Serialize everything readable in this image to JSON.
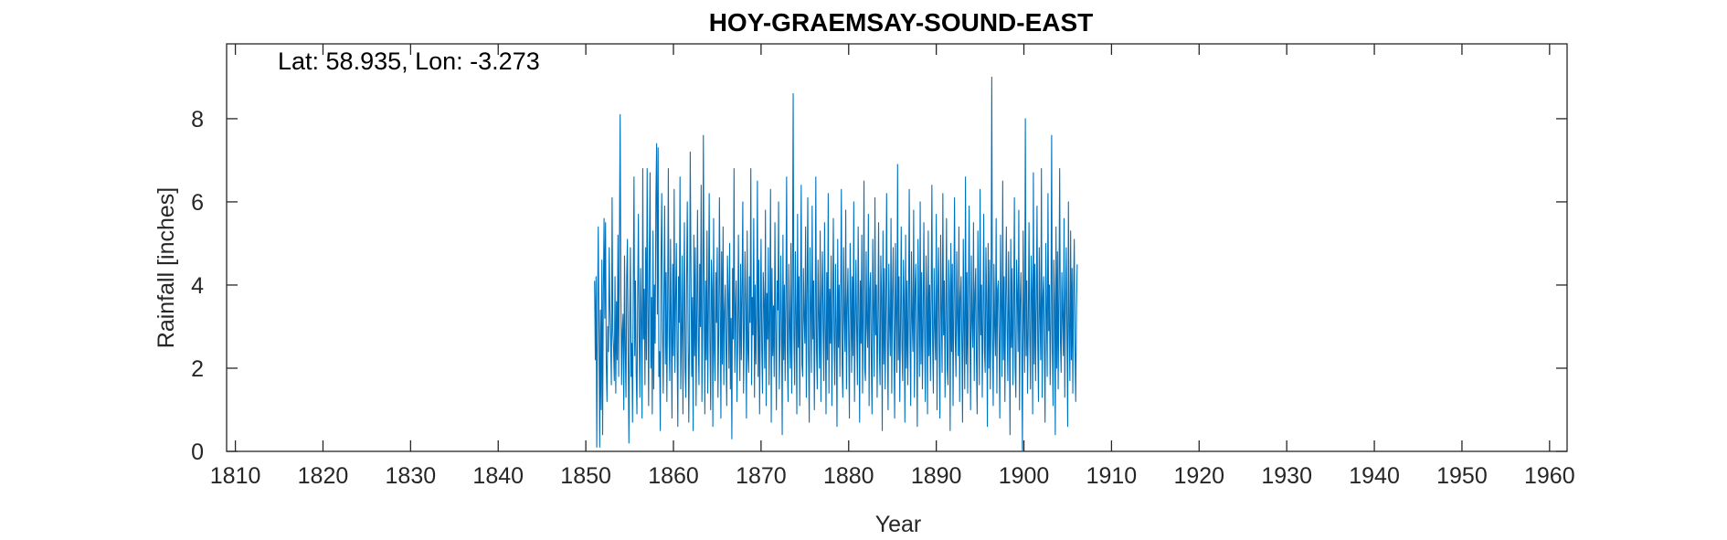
{
  "chart_data": {
    "type": "line",
    "title": "HOY-GRAEMSAY-SOUND-EAST",
    "xlabel": "Year",
    "ylabel": "Rainfall [inches]",
    "annotation": "Lat: 58.935, Lon: -3.273",
    "xlim": [
      1809,
      1962
    ],
    "ylim": [
      0,
      9.8
    ],
    "xticks": [
      1810,
      1820,
      1830,
      1840,
      1850,
      1860,
      1870,
      1880,
      1890,
      1900,
      1910,
      1920,
      1930,
      1940,
      1950,
      1960
    ],
    "yticks": [
      0,
      2,
      4,
      6,
      8
    ],
    "grid": false,
    "series": [
      {
        "color": "#0072BD",
        "x_start": 1851.0,
        "step": 0.0833333,
        "values": [
          4.1,
          2.2,
          4.2,
          0.1,
          3.1,
          5.4,
          2.9,
          0.1,
          3.4,
          1.0,
          4.6,
          0.4,
          3.8,
          5.6,
          3.2,
          5.5,
          2.1,
          1.2,
          3.0,
          2.4,
          4.9,
          3.4,
          2.7,
          1.6,
          6.1,
          2.9,
          2.5,
          1.7,
          4.2,
          1.4,
          3.6,
          2.2,
          5.2,
          1.8,
          4.8,
          8.1,
          3.8,
          1.6,
          2.9,
          3.3,
          1.0,
          4.7,
          2.5,
          1.3,
          4.2,
          5.1,
          2.4,
          0.2,
          3.0,
          4.9,
          1.8,
          2.6,
          0.7,
          3.9,
          6.6,
          2.3,
          4.1,
          1.9,
          0.9,
          3.7,
          5.7,
          2.8,
          1.3,
          4.4,
          3.1,
          0.8,
          6.8,
          2.7,
          3.9,
          1.6,
          4.9,
          2.2,
          6.8,
          3.5,
          1.1,
          4.8,
          6.7,
          2.0,
          3.7,
          0.9,
          5.3,
          1.5,
          4.0,
          2.6,
          6.1,
          7.4,
          3.3,
          7.3,
          1.8,
          2.4,
          0.5,
          4.6,
          6.2,
          2.9,
          1.4,
          3.8,
          5.9,
          2.1,
          4.3,
          1.2,
          3.5,
          6.8,
          2.7,
          1.7,
          5.1,
          3.0,
          0.8,
          4.5,
          2.3,
          6.3,
          1.9,
          3.6,
          5.0,
          2.5,
          0.6,
          4.2,
          3.1,
          6.6,
          1.5,
          2.8,
          4.7,
          0.9,
          3.4,
          5.5,
          2.0,
          1.3,
          4.0,
          6.0,
          3.2,
          0.7,
          2.6,
          7.2,
          4.4,
          1.8,
          3.7,
          0.5,
          5.2,
          2.3,
          4.9,
          1.1,
          3.3,
          5.8,
          2.7,
          1.6,
          4.5,
          3.0,
          6.4,
          1.2,
          2.9,
          7.6,
          3.8,
          0.9,
          4.1,
          2.2,
          5.3,
          1.4,
          3.5,
          6.2,
          2.6,
          1.0,
          4.6,
          3.9,
          0.6,
          5.6,
          2.4,
          1.7,
          4.3,
          3.1,
          4.9,
          1.3,
          2.8,
          6.1,
          3.6,
          0.8,
          4.8,
          2.1,
          5.4,
          1.6,
          3.3,
          4.0,
          2.5,
          1.1,
          4.7,
          3.8,
          2.0,
          5.0,
          1.5,
          3.2,
          0.3,
          4.4,
          2.7,
          6.8,
          1.9,
          3.4,
          4.1,
          1.2,
          2.6,
          5.2,
          3.0,
          1.7,
          4.5,
          2.2,
          3.9,
          6.0,
          1.4,
          2.9,
          4.8,
          3.5,
          0.8,
          5.3,
          2.4,
          1.9,
          4.2,
          3.1,
          6.8,
          1.6,
          3.7,
          2.8,
          5.6,
          1.3,
          4.0,
          2.1,
          3.3,
          6.5,
          1.8,
          4.6,
          0.9,
          3.0,
          5.1,
          2.5,
          1.4,
          4.3,
          3.6,
          2.0,
          5.8,
          1.1,
          3.8,
          2.7,
          4.9,
          1.6,
          3.2,
          6.3,
          0.7,
          4.4,
          2.3,
          3.5,
          1.8,
          5.5,
          2.9,
          1.0,
          4.1,
          3.4,
          6.0,
          1.5,
          2.6,
          4.7,
          3.1,
          0.4,
          5.2,
          2.2,
          4.0,
          1.7,
          3.6,
          6.6,
          2.4,
          1.2,
          4.5,
          3.0,
          2.0,
          5.0,
          1.4,
          3.9,
          8.6,
          2.8,
          1.6,
          4.8,
          3.3,
          0.9,
          5.7,
          2.5,
          4.2,
          1.1,
          3.7,
          6.4,
          2.1,
          1.8,
          4.4,
          3.2,
          2.6,
          5.4,
          1.3,
          3.8,
          6.1,
          2.3,
          0.7,
          4.9,
          3.5,
          1.9,
          5.9,
          2.7,
          4.1,
          1.0,
          3.0,
          6.6,
          2.4,
          1.5,
          4.6,
          3.3,
          2.0,
          5.3,
          1.2,
          3.6,
          4.8,
          2.9,
          1.7,
          5.5,
          3.1,
          0.9,
          4.3,
          2.2,
          6.2,
          1.4,
          3.9,
          2.6,
          4.7,
          1.1,
          3.4,
          5.6,
          2.8,
          1.6,
          4.5,
          3.0,
          0.6,
          5.1,
          2.5,
          4.0,
          1.8,
          3.7,
          6.3,
          2.1,
          1.3,
          4.9,
          3.2,
          2.4,
          5.8,
          1.5,
          3.5,
          4.4,
          2.7,
          0.8,
          5.0,
          3.8,
          1.9,
          4.2,
          2.3,
          6.0,
          1.2,
          3.1,
          4.6,
          2.9,
          1.6,
          5.4,
          3.6,
          0.7,
          4.1,
          2.6,
          5.2,
          1.4,
          3.3,
          6.5,
          2.0,
          1.7,
          4.8,
          3.0,
          2.5,
          5.7,
          1.1,
          3.9,
          4.3,
          2.2,
          0.9,
          5.1,
          3.4,
          1.8,
          6.1,
          2.8,
          4.0,
          1.3,
          3.2,
          5.5,
          2.4,
          1.6,
          4.7,
          3.7,
          0.5,
          5.3,
          2.1,
          4.4,
          1.5,
          3.5,
          6.2,
          2.7,
          1.0,
          4.5,
          3.1,
          2.3,
          5.6,
          1.4,
          3.8,
          4.9,
          2.6,
          0.8,
          5.0,
          3.3,
          1.9,
          6.9,
          2.2,
          4.2,
          1.2,
          3.0,
          5.4,
          2.5,
          1.7,
          4.6,
          3.6,
          0.7,
          5.2,
          2.0,
          4.1,
          1.6,
          3.4,
          6.3,
          2.8,
          1.1,
          4.8,
          3.2,
          2.4,
          5.8,
          1.3,
          3.9,
          4.5,
          2.7,
          0.6,
          5.1,
          3.5,
          1.8,
          6.0,
          2.1,
          4.3,
          1.5,
          3.1,
          5.5,
          2.9,
          1.2,
          4.7,
          3.7,
          0.9,
          5.3,
          2.3,
          4.0,
          1.7,
          3.6,
          6.4,
          2.6,
          1.4,
          4.4,
          3.0,
          2.2,
          5.7,
          1.0,
          3.8,
          4.9,
          2.5,
          0.8,
          5.2,
          3.4,
          1.9,
          6.2,
          2.8,
          4.1,
          1.3,
          3.3,
          5.6,
          2.0,
          1.6,
          4.6,
          3.9,
          0.5,
          5.0,
          2.4,
          4.5,
          1.1,
          3.5,
          6.1,
          2.7,
          1.8,
          4.8,
          3.2,
          2.3,
          5.4,
          1.2,
          3.7,
          4.2,
          2.6,
          0.7,
          5.1,
          3.0,
          1.5,
          6.6,
          2.1,
          4.3,
          1.4,
          3.6,
          5.9,
          2.9,
          1.0,
          4.7,
          3.1,
          2.5,
          5.5,
          1.7,
          3.8,
          4.4,
          2.2,
          0.9,
          5.3,
          3.4,
          1.6,
          6.3,
          2.8,
          4.0,
          1.3,
          3.2,
          5.7,
          2.4,
          1.9,
          4.9,
          3.6,
          0.6,
          5.0,
          2.0,
          4.6,
          1.5,
          3.3,
          9.0,
          2.7,
          1.1,
          4.5,
          3.0,
          2.3,
          5.6,
          1.4,
          3.9,
          4.1,
          2.6,
          0.8,
          5.2,
          3.5,
          1.8,
          6.5,
          2.2,
          4.2,
          1.2,
          3.7,
          5.4,
          2.9,
          1.7,
          4.8,
          3.1,
          0.4,
          5.1,
          2.5,
          4.4,
          1.6,
          3.4,
          6.1,
          2.0,
          1.3,
          4.6,
          3.8,
          2.4,
          5.8,
          1.0,
          3.6,
          4.3,
          2.7,
          0.0,
          5.3,
          3.2,
          1.9,
          8.0,
          2.3,
          4.1,
          1.4,
          3.0,
          5.5,
          2.8,
          1.5,
          4.7,
          3.9,
          0.9,
          6.7,
          2.1,
          4.5,
          1.7,
          3.5,
          5.9,
          2.6,
          1.2,
          4.9,
          3.3,
          2.2,
          6.8,
          1.3,
          3.7,
          4.2,
          2.5,
          0.7,
          5.0,
          3.4,
          1.8,
          6.2,
          2.9,
          4.0,
          1.6,
          3.1,
          7.6,
          2.4,
          1.1,
          4.6,
          3.6,
          0.4,
          5.4,
          2.0,
          4.8,
          1.5,
          3.8,
          6.8,
          2.7,
          1.9,
          4.3,
          3.2,
          2.3,
          5.6,
          1.3,
          3.5,
          4.9,
          2.8,
          0.6,
          6.0,
          3.0,
          1.7,
          5.3,
          2.2,
          4.4,
          1.4,
          3.9,
          5.1,
          2.5,
          1.2,
          3.4,
          4.5
        ]
      }
    ]
  }
}
